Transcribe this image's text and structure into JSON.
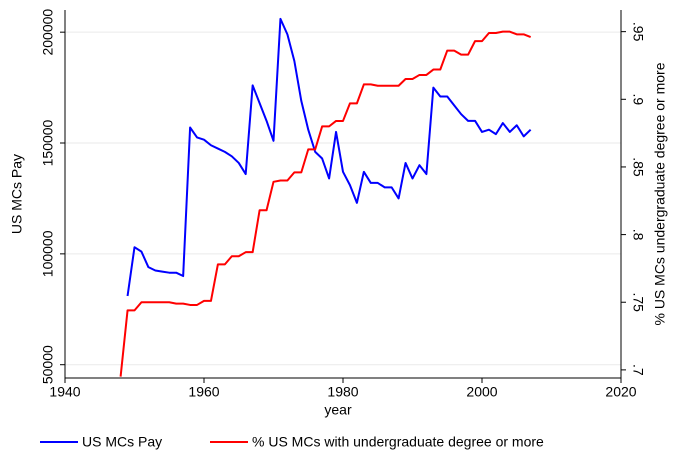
{
  "chart_data": {
    "type": "line",
    "xlabel": "year",
    "ylabel": "US MCs Pay",
    "y2label": "% US MCs  undergraduate degree or more",
    "x": [
      1948,
      1949,
      1950,
      1951,
      1952,
      1953,
      1954,
      1955,
      1956,
      1957,
      1958,
      1959,
      1960,
      1961,
      1962,
      1963,
      1964,
      1965,
      1966,
      1967,
      1968,
      1969,
      1970,
      1971,
      1972,
      1973,
      1974,
      1975,
      1976,
      1977,
      1978,
      1979,
      1980,
      1981,
      1982,
      1983,
      1984,
      1985,
      1986,
      1987,
      1988,
      1989,
      1990,
      1991,
      1992,
      1993,
      1994,
      1995,
      1996,
      1997,
      1998,
      1999,
      2000,
      2001,
      2002,
      2003,
      2004,
      2005,
      2006,
      2007
    ],
    "series": [
      {
        "name": "US MCs Pay",
        "color": "#0000ff",
        "axis": "y",
        "values": [
          null,
          81000,
          103000,
          101000,
          94000,
          92500,
          92000,
          91500,
          91500,
          90000,
          157000,
          152500,
          151500,
          149000,
          147500,
          146000,
          144000,
          141000,
          136000,
          176000,
          168000,
          160000,
          151000,
          206000,
          199000,
          187000,
          169000,
          156000,
          146000,
          143000,
          134000,
          155000,
          137000,
          131000,
          123000,
          137000,
          132000,
          132000,
          130000,
          130000,
          125000,
          141000,
          134000,
          140000,
          136000,
          175000,
          171000,
          171000,
          167000,
          163000,
          160000,
          160000,
          155000,
          156000,
          154000,
          159000,
          155000,
          158000,
          153000,
          156000
        ]
      },
      {
        "name": "% US MCs with undergraduate degree or more",
        "color": "#ff0000",
        "axis": "y2",
        "values": [
          0.695,
          0.744,
          0.744,
          0.75,
          0.75,
          0.75,
          0.75,
          0.75,
          0.749,
          0.749,
          0.748,
          0.748,
          0.751,
          0.751,
          0.778,
          0.778,
          0.784,
          0.784,
          0.787,
          0.787,
          0.818,
          0.818,
          0.839,
          0.84,
          0.84,
          0.846,
          0.846,
          0.863,
          0.863,
          0.88,
          0.88,
          0.884,
          0.884,
          0.897,
          0.897,
          0.911,
          0.911,
          0.91,
          0.91,
          0.91,
          0.91,
          0.915,
          0.915,
          0.918,
          0.918,
          0.922,
          0.922,
          0.936,
          0.936,
          0.933,
          0.933,
          0.943,
          0.943,
          0.949,
          0.949,
          0.95,
          0.95,
          0.948,
          0.948,
          0.946
        ]
      }
    ],
    "xlim": [
      1940,
      2020
    ],
    "xticks": [
      1940,
      1960,
      1980,
      2000,
      2020
    ],
    "ylim": [
      44000,
      210000
    ],
    "yticks": [
      50000,
      100000,
      150000,
      200000
    ],
    "y2lim": [
      0.694,
      0.966
    ],
    "y2ticks": [
      {
        "value": 0.7,
        "label": ".7"
      },
      {
        "value": 0.75,
        "label": ".75"
      },
      {
        "value": 0.8,
        "label": ".8"
      },
      {
        "value": 0.85,
        "label": ".85"
      },
      {
        "value": 0.9,
        "label": ".9"
      },
      {
        "value": 0.95,
        "label": ".95"
      }
    ],
    "grid": true,
    "legend": "bottom"
  }
}
